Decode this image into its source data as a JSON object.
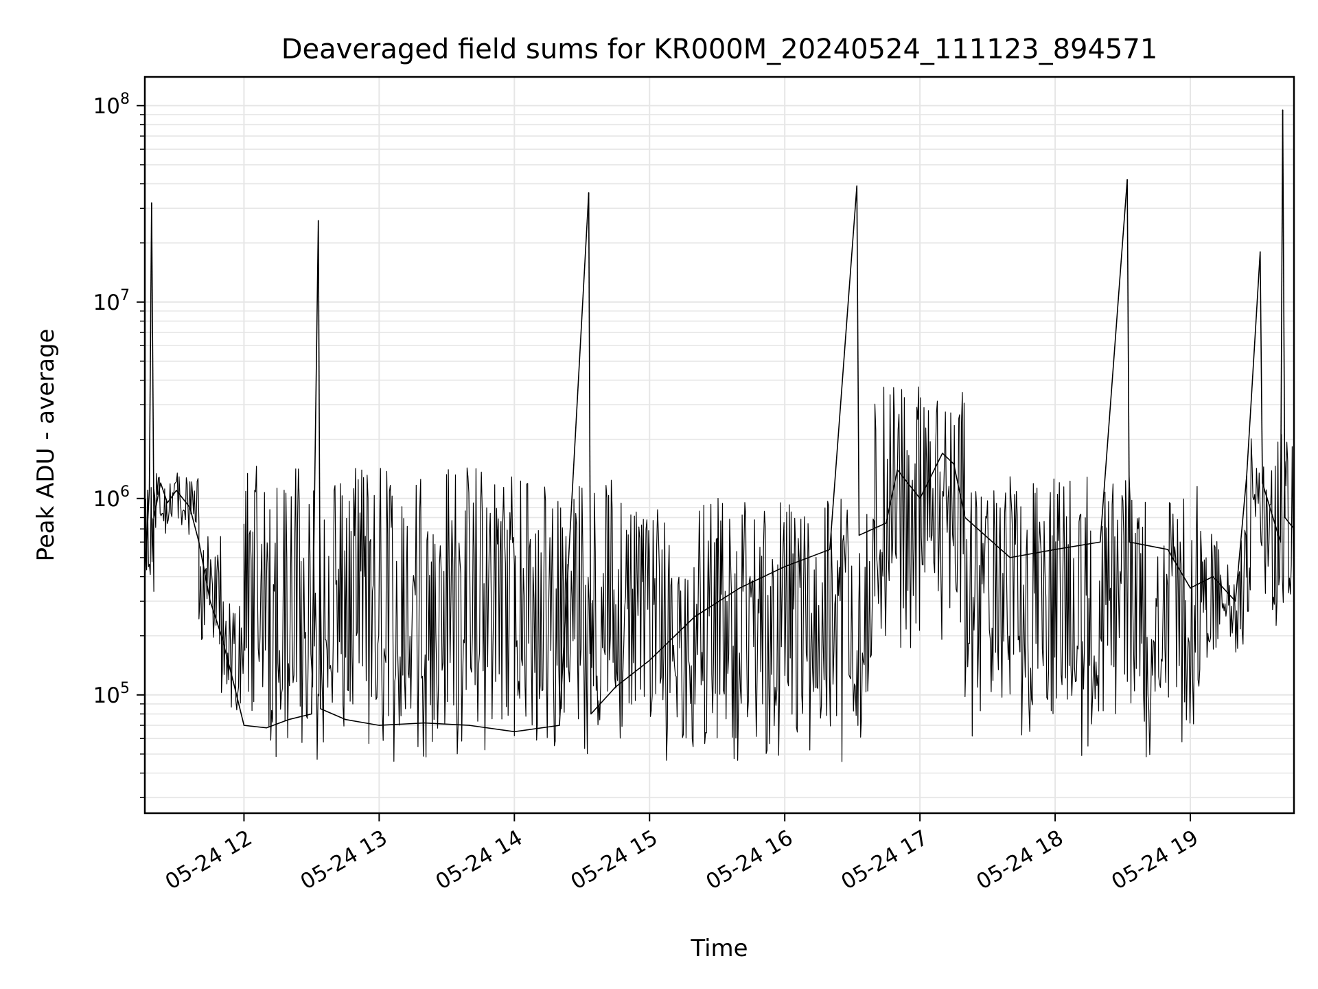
{
  "chart_data": {
    "type": "line",
    "title": "Deaveraged field sums for KR000M_20240524_111123_894571",
    "xlabel": "Time",
    "ylabel": "Peak ADU - average",
    "yscale": "log",
    "grid": true,
    "line_color": "#000000",
    "grid_color": "#e6e6e6",
    "xlim": [
      "2024-05-24 11:16",
      "2024-05-24 19:46"
    ],
    "ylim": [
      25000,
      140000000
    ],
    "x_ticks": [
      {
        "time": "2024-05-24 12:00",
        "label": "05-24 12"
      },
      {
        "time": "2024-05-24 13:00",
        "label": "05-24 13"
      },
      {
        "time": "2024-05-24 14:00",
        "label": "05-24 14"
      },
      {
        "time": "2024-05-24 15:00",
        "label": "05-24 15"
      },
      {
        "time": "2024-05-24 16:00",
        "label": "05-24 16"
      },
      {
        "time": "2024-05-24 17:00",
        "label": "05-24 17"
      },
      {
        "time": "2024-05-24 18:00",
        "label": "05-24 18"
      },
      {
        "time": "2024-05-24 19:00",
        "label": "05-24 19"
      }
    ],
    "y_ticks": [
      {
        "value": 100000,
        "base": "10",
        "exp": "5"
      },
      {
        "value": 1000000,
        "base": "10",
        "exp": "6"
      },
      {
        "value": 10000000,
        "base": "10",
        "exp": "7"
      },
      {
        "value": 100000000,
        "base": "10",
        "exp": "8"
      }
    ],
    "series": [
      {
        "points": [
          [
            "2024-05-24 11:16",
            400000
          ],
          [
            "2024-05-24 11:18",
            1100000
          ],
          [
            "2024-05-24 11:19",
            32000000
          ],
          [
            "2024-05-24 11:20",
            800000
          ],
          [
            "2024-05-24 11:23",
            1200000
          ],
          [
            "2024-05-24 11:26",
            950000
          ],
          [
            "2024-05-24 11:30",
            1100000
          ],
          [
            "2024-05-24 11:36",
            900000
          ],
          [
            "2024-05-24 11:40",
            600000
          ],
          [
            "2024-05-24 11:45",
            300000
          ],
          [
            "2024-05-24 11:50",
            200000
          ],
          [
            "2024-05-24 11:55",
            120000
          ],
          [
            "2024-05-24 12:00",
            70000
          ],
          [
            "2024-05-24 12:10",
            68000
          ],
          [
            "2024-05-24 12:20",
            75000
          ],
          [
            "2024-05-24 12:30",
            80000
          ],
          [
            "2024-05-24 12:33",
            26000000
          ],
          [
            "2024-05-24 12:34",
            85000
          ],
          [
            "2024-05-24 12:45",
            75000
          ],
          [
            "2024-05-24 13:00",
            70000
          ],
          [
            "2024-05-24 13:20",
            72000
          ],
          [
            "2024-05-24 13:40",
            70000
          ],
          [
            "2024-05-24 14:00",
            65000
          ],
          [
            "2024-05-24 14:20",
            70000
          ],
          [
            "2024-05-24 14:33",
            36000000
          ],
          [
            "2024-05-24 14:34",
            80000
          ],
          [
            "2024-05-24 14:45",
            110000
          ],
          [
            "2024-05-24 15:00",
            150000
          ],
          [
            "2024-05-24 15:20",
            250000
          ],
          [
            "2024-05-24 15:40",
            350000
          ],
          [
            "2024-05-24 16:00",
            450000
          ],
          [
            "2024-05-24 16:20",
            550000
          ],
          [
            "2024-05-24 16:32",
            39000000
          ],
          [
            "2024-05-24 16:33",
            650000
          ],
          [
            "2024-05-24 16:45",
            750000
          ],
          [
            "2024-05-24 16:50",
            1400000
          ],
          [
            "2024-05-24 17:00",
            1000000
          ],
          [
            "2024-05-24 17:10",
            1700000
          ],
          [
            "2024-05-24 17:15",
            1500000
          ],
          [
            "2024-05-24 17:20",
            800000
          ],
          [
            "2024-05-24 17:40",
            500000
          ],
          [
            "2024-05-24 18:00",
            550000
          ],
          [
            "2024-05-24 18:20",
            600000
          ],
          [
            "2024-05-24 18:32",
            42000000
          ],
          [
            "2024-05-24 18:33",
            600000
          ],
          [
            "2024-05-24 18:50",
            550000
          ],
          [
            "2024-05-24 19:00",
            350000
          ],
          [
            "2024-05-24 19:10",
            400000
          ],
          [
            "2024-05-24 19:20",
            300000
          ],
          [
            "2024-05-24 19:25",
            1300000
          ],
          [
            "2024-05-24 19:31",
            18000000
          ],
          [
            "2024-05-24 19:32",
            1200000
          ],
          [
            "2024-05-24 19:40",
            600000
          ],
          [
            "2024-05-24 19:41",
            95000000
          ],
          [
            "2024-05-24 19:42",
            800000
          ],
          [
            "2024-05-24 19:46",
            700000
          ]
        ],
        "bands": [
          {
            "from": "2024-05-24 11:16",
            "to": "2024-05-24 11:20",
            "low": 250000,
            "high": 1250000
          },
          {
            "from": "2024-05-24 11:20",
            "to": "2024-05-24 11:40",
            "low": 650000,
            "high": 1350000
          },
          {
            "from": "2024-05-24 11:40",
            "to": "2024-05-24 11:50",
            "low": 170000,
            "high": 650000
          },
          {
            "from": "2024-05-24 11:50",
            "to": "2024-05-24 12:00",
            "low": 75000,
            "high": 300000
          },
          {
            "from": "2024-05-24 12:00",
            "to": "2024-05-24 14:00",
            "low": 45000,
            "high": 1500000
          },
          {
            "from": "2024-05-24 14:00",
            "to": "2024-05-24 14:45",
            "low": 45000,
            "high": 1300000
          },
          {
            "from": "2024-05-24 14:45",
            "to": "2024-05-24 15:30",
            "low": 45000,
            "high": 1000000
          },
          {
            "from": "2024-05-24 15:30",
            "to": "2024-05-24 16:40",
            "low": 45000,
            "high": 1050000
          },
          {
            "from": "2024-05-24 16:40",
            "to": "2024-05-24 17:20",
            "low": 170000,
            "high": 3700000
          },
          {
            "from": "2024-05-24 17:20",
            "to": "2024-05-24 17:40",
            "low": 60000,
            "high": 1100000
          },
          {
            "from": "2024-05-24 17:40",
            "to": "2024-05-24 18:40",
            "low": 45000,
            "high": 1300000
          },
          {
            "from": "2024-05-24 18:40",
            "to": "2024-05-24 19:05",
            "low": 45000,
            "high": 1250000
          },
          {
            "from": "2024-05-24 19:05",
            "to": "2024-05-24 19:25",
            "low": 150000,
            "high": 700000
          },
          {
            "from": "2024-05-24 19:25",
            "to": "2024-05-24 19:46",
            "low": 220000,
            "high": 2200000
          }
        ]
      }
    ]
  }
}
